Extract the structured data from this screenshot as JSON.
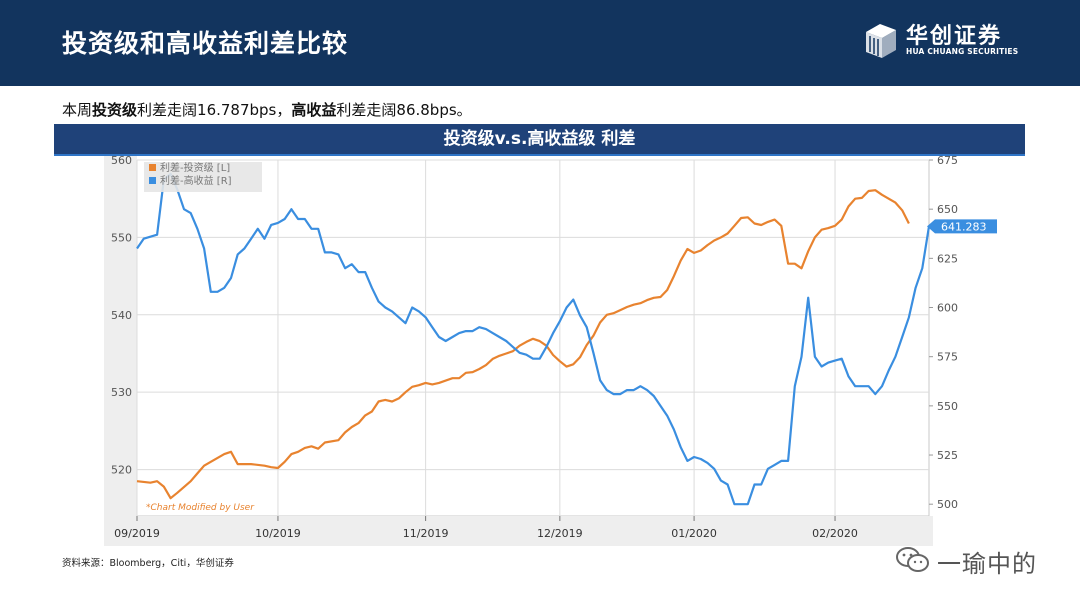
{
  "header": {
    "title": "投资级和高收益利差比较",
    "logo_cn": "华创证券",
    "logo_en": "HUA CHUANG SECURITIES"
  },
  "summary": {
    "p1": "本周",
    "b1": "投资级",
    "p2": "利差走阔16.787bps，",
    "b2": "高收益",
    "p3": "利差走阔86.8bps。"
  },
  "band_title": "投资级v.s.高收益级 利差",
  "source": "资料来源：Bloomberg，Citi，华创证券",
  "watermark": "一瑜中的",
  "colors": {
    "ig": "#e8832f",
    "hy": "#3a8ee0",
    "header_bg": "#12345e",
    "band_bg": "#1f4279"
  },
  "chart_data": {
    "type": "line",
    "annotation": "*Chart Modified by User",
    "x_ticks": [
      "09/2019",
      "10/2019",
      "11/2019",
      "12/2019",
      "01/2020",
      "02/2020"
    ],
    "x_tick_positions": [
      0,
      21,
      43,
      63,
      83,
      104
    ],
    "y_left": {
      "ylim": [
        514,
        560
      ],
      "ticks": [
        "560",
        "550",
        "540",
        "530",
        "520"
      ],
      "tick_values": [
        560,
        550,
        540,
        530,
        520
      ]
    },
    "y_right": {
      "ylim": [
        494,
        675
      ],
      "ticks": [
        "675",
        "650",
        "625",
        "600",
        "575",
        "550",
        "525",
        "500"
      ],
      "tick_values": [
        675,
        650,
        625,
        600,
        575,
        550,
        525,
        500
      ]
    },
    "last_value_label": "641.283",
    "grid": true,
    "legend_position": "top-left",
    "series": [
      {
        "name": "利差-投资级 [L]",
        "axis": "left",
        "points": [
          [
            0,
            518.5
          ],
          [
            2,
            518.3
          ],
          [
            3,
            518.5
          ],
          [
            4,
            517.8
          ],
          [
            5,
            516.3
          ],
          [
            6,
            517
          ],
          [
            8,
            518.5
          ],
          [
            9,
            519.5
          ],
          [
            10,
            520.5
          ],
          [
            11,
            521
          ],
          [
            13,
            522
          ],
          [
            14,
            522.3
          ],
          [
            15,
            520.7
          ],
          [
            17,
            520.7
          ],
          [
            19,
            520.5
          ],
          [
            20,
            520.3
          ],
          [
            21,
            520.2
          ],
          [
            22,
            521
          ],
          [
            23,
            522
          ],
          [
            24,
            522.3
          ],
          [
            25,
            522.8
          ],
          [
            26,
            523
          ],
          [
            27,
            522.7
          ],
          [
            28,
            523.5
          ],
          [
            30,
            523.8
          ],
          [
            31,
            524.8
          ],
          [
            32,
            525.5
          ],
          [
            33,
            526
          ],
          [
            34,
            527
          ],
          [
            35,
            527.5
          ],
          [
            36,
            528.8
          ],
          [
            37,
            529
          ],
          [
            38,
            528.8
          ],
          [
            39,
            529.2
          ],
          [
            40,
            530
          ],
          [
            41,
            530.7
          ],
          [
            42,
            530.9
          ],
          [
            43,
            531.2
          ],
          [
            44,
            531
          ],
          [
            45,
            531.2
          ],
          [
            47,
            531.8
          ],
          [
            48,
            531.8
          ],
          [
            49,
            532.5
          ],
          [
            50,
            532.6
          ],
          [
            51,
            533
          ],
          [
            52,
            533.5
          ],
          [
            53,
            534.3
          ],
          [
            54,
            534.7
          ],
          [
            55,
            535
          ],
          [
            56,
            535.3
          ],
          [
            57,
            536
          ],
          [
            58,
            536.5
          ],
          [
            59,
            536.9
          ],
          [
            60,
            536.6
          ],
          [
            61,
            536
          ],
          [
            62,
            534.8
          ],
          [
            63,
            534
          ],
          [
            64,
            533.3
          ],
          [
            65,
            533.6
          ],
          [
            66,
            534.5
          ],
          [
            67,
            536.1
          ],
          [
            68,
            537.3
          ],
          [
            69,
            539
          ],
          [
            70,
            540
          ],
          [
            71,
            540.2
          ],
          [
            72,
            540.6
          ],
          [
            73,
            541
          ],
          [
            74,
            541.3
          ],
          [
            75,
            541.5
          ],
          [
            76,
            541.9
          ],
          [
            77,
            542.2
          ],
          [
            78,
            542.3
          ],
          [
            79,
            543.2
          ],
          [
            80,
            545
          ],
          [
            81,
            547
          ],
          [
            82,
            548.5
          ],
          [
            83,
            548
          ],
          [
            84,
            548.3
          ],
          [
            85,
            549
          ],
          [
            86,
            549.6
          ],
          [
            87,
            550
          ],
          [
            88,
            550.5
          ],
          [
            89,
            551.5
          ],
          [
            90,
            552.5
          ],
          [
            91,
            552.6
          ],
          [
            92,
            551.8
          ],
          [
            93,
            551.6
          ],
          [
            94,
            552
          ],
          [
            95,
            552.3
          ],
          [
            96,
            551.5
          ],
          [
            97,
            546.6
          ],
          [
            98,
            546.6
          ],
          [
            99,
            546
          ],
          [
            100,
            548.2
          ],
          [
            101,
            550
          ],
          [
            102,
            551
          ],
          [
            103,
            551.2
          ],
          [
            104,
            551.5
          ],
          [
            105,
            552.3
          ],
          [
            106,
            554
          ],
          [
            107,
            555
          ],
          [
            108,
            555.1
          ],
          [
            109,
            556
          ],
          [
            110,
            556.1
          ],
          [
            111,
            555.5
          ],
          [
            112,
            555
          ],
          [
            113,
            554.5
          ],
          [
            114,
            553.5
          ],
          [
            115,
            551.8
          ]
        ]
      },
      {
        "name": "利差-高收益 [R]",
        "axis": "right",
        "points": [
          [
            0,
            630
          ],
          [
            1,
            635
          ],
          [
            2,
            636
          ],
          [
            3,
            637
          ],
          [
            4,
            665
          ],
          [
            5,
            668
          ],
          [
            6,
            660
          ],
          [
            7,
            650
          ],
          [
            8,
            648
          ],
          [
            9,
            640
          ],
          [
            10,
            630
          ],
          [
            11,
            608
          ],
          [
            12,
            608
          ],
          [
            13,
            610
          ],
          [
            14,
            615
          ],
          [
            15,
            627
          ],
          [
            16,
            630
          ],
          [
            17,
            635
          ],
          [
            18,
            640
          ],
          [
            19,
            635
          ],
          [
            20,
            642
          ],
          [
            21,
            643
          ],
          [
            22,
            645
          ],
          [
            23,
            650
          ],
          [
            24,
            645
          ],
          [
            25,
            645
          ],
          [
            26,
            640
          ],
          [
            27,
            640
          ],
          [
            28,
            628
          ],
          [
            29,
            628
          ],
          [
            30,
            627
          ],
          [
            31,
            620
          ],
          [
            32,
            622
          ],
          [
            33,
            618
          ],
          [
            34,
            618
          ],
          [
            35,
            610
          ],
          [
            36,
            603
          ],
          [
            37,
            600
          ],
          [
            38,
            598
          ],
          [
            39,
            595
          ],
          [
            40,
            592
          ],
          [
            41,
            600
          ],
          [
            42,
            598
          ],
          [
            43,
            595
          ],
          [
            44,
            590
          ],
          [
            45,
            585
          ],
          [
            46,
            583
          ],
          [
            47,
            585
          ],
          [
            48,
            587
          ],
          [
            49,
            588
          ],
          [
            50,
            588
          ],
          [
            51,
            590
          ],
          [
            52,
            589
          ],
          [
            53,
            587
          ],
          [
            54,
            585
          ],
          [
            55,
            583
          ],
          [
            56,
            580
          ],
          [
            57,
            577
          ],
          [
            58,
            576
          ],
          [
            59,
            574
          ],
          [
            60,
            574
          ],
          [
            61,
            580
          ],
          [
            62,
            587
          ],
          [
            63,
            593
          ],
          [
            64,
            600
          ],
          [
            65,
            604
          ],
          [
            66,
            596
          ],
          [
            67,
            590
          ],
          [
            68,
            577
          ],
          [
            69,
            563
          ],
          [
            70,
            558
          ],
          [
            71,
            556
          ],
          [
            72,
            556
          ],
          [
            73,
            558
          ],
          [
            74,
            558
          ],
          [
            75,
            560
          ],
          [
            76,
            558
          ],
          [
            77,
            555
          ],
          [
            78,
            550
          ],
          [
            79,
            545
          ],
          [
            80,
            538
          ],
          [
            81,
            529
          ],
          [
            82,
            522
          ],
          [
            83,
            524
          ],
          [
            84,
            523
          ],
          [
            85,
            521
          ],
          [
            86,
            518
          ],
          [
            87,
            512
          ],
          [
            88,
            510
          ],
          [
            89,
            500
          ],
          [
            90,
            500
          ],
          [
            91,
            500
          ],
          [
            92,
            510
          ],
          [
            93,
            510
          ],
          [
            94,
            518
          ],
          [
            95,
            520
          ],
          [
            96,
            522
          ],
          [
            97,
            522
          ],
          [
            98,
            560
          ],
          [
            99,
            575
          ],
          [
            100,
            605
          ],
          [
            101,
            575
          ],
          [
            102,
            570
          ],
          [
            103,
            572
          ],
          [
            104,
            573
          ],
          [
            105,
            574
          ],
          [
            106,
            565
          ],
          [
            107,
            560
          ],
          [
            108,
            560
          ],
          [
            109,
            560
          ],
          [
            110,
            556
          ],
          [
            111,
            560
          ],
          [
            112,
            568
          ],
          [
            113,
            575
          ],
          [
            114,
            585
          ],
          [
            115,
            595
          ],
          [
            116,
            610
          ],
          [
            117,
            620
          ],
          [
            118,
            641.283
          ]
        ]
      }
    ]
  }
}
